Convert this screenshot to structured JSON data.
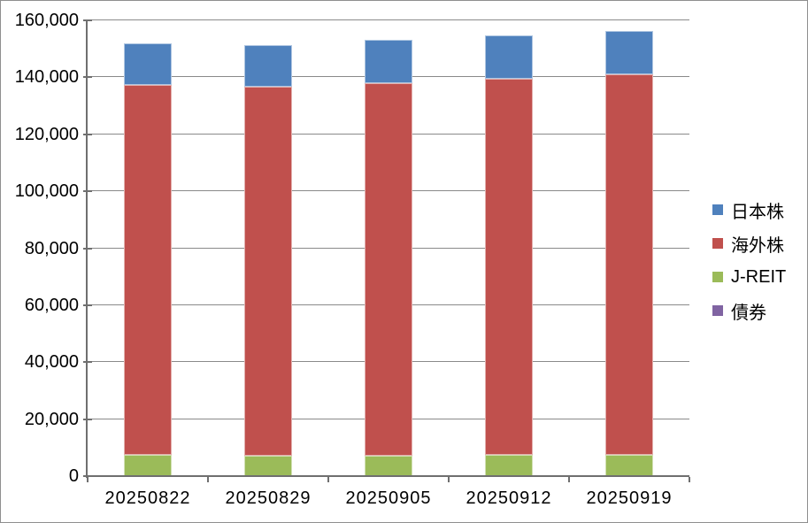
{
  "window": {
    "background": "#FFFFFF",
    "border_color": "#8F8F8F"
  },
  "chart_data": {
    "type": "bar",
    "stacked": true,
    "title": "",
    "xlabel": "",
    "ylabel": "",
    "categories": [
      "20250822",
      "20250829",
      "20250905",
      "20250912",
      "20250919"
    ],
    "series": [
      {
        "name": "日本株",
        "color": "#4F81BD",
        "values": [
          14600,
          14400,
          15100,
          15300,
          15300
        ]
      },
      {
        "name": "海外株",
        "color": "#C0504D",
        "values": [
          129800,
          129500,
          130800,
          132000,
          133500
        ]
      },
      {
        "name": "J-REIT",
        "color": "#9BBB59",
        "values": [
          7400,
          7300,
          7200,
          7400,
          7400
        ]
      },
      {
        "name": "債券",
        "color": "#8064A2",
        "values": [
          0,
          0,
          0,
          0,
          0
        ]
      }
    ],
    "stack_order_bottom_to_top": [
      "債券",
      "J-REIT",
      "海外株",
      "日本株"
    ],
    "totals": [
      151800,
      151200,
      153100,
      154700,
      156200
    ],
    "ylim": [
      0,
      160000
    ],
    "ytick_step": 20000,
    "ytick_labels": [
      "0",
      "20,000",
      "40,000",
      "60,000",
      "80,000",
      "100,000",
      "120,000",
      "140,000",
      "160,000"
    ],
    "grid": true,
    "legend_position": "right",
    "gridline_color": "#8A8A8A",
    "axis_color": "#6F6F6F",
    "text_color": "#000000"
  }
}
